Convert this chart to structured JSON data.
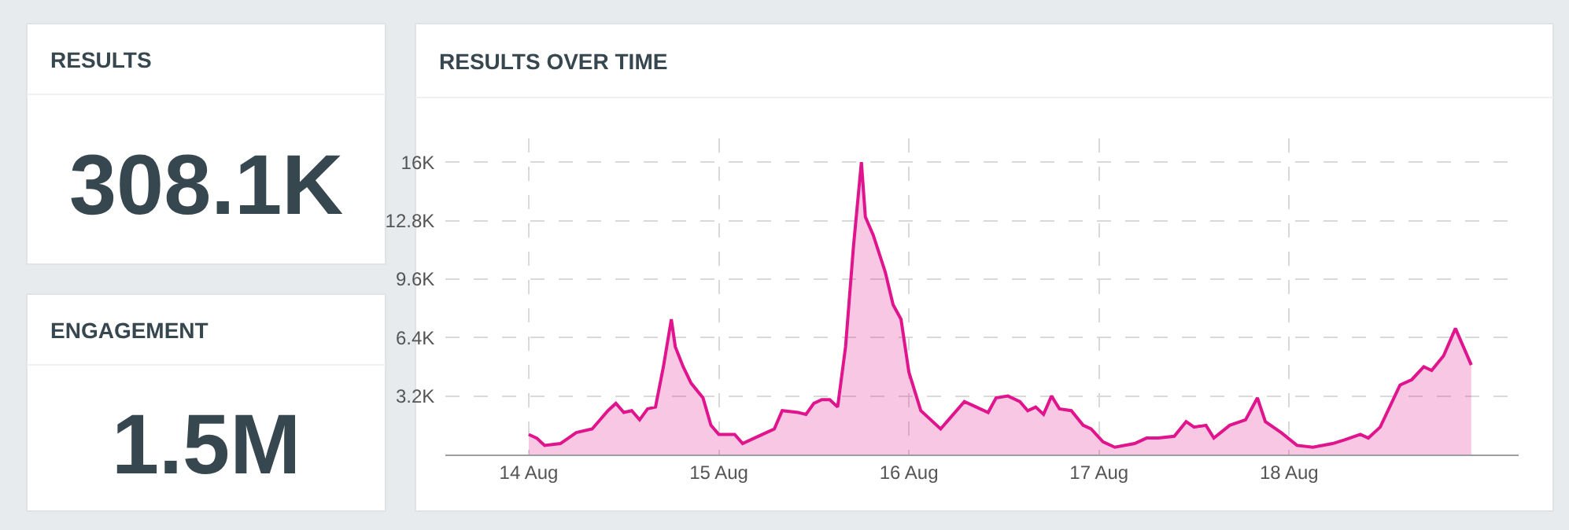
{
  "chart_data": [
    {
      "type": "other",
      "title": "RESULTS",
      "annotations": [
        "308.1K"
      ]
    },
    {
      "type": "other",
      "title": "ENGAGEMENT",
      "annotations": [
        "1.5M"
      ]
    },
    {
      "type": "area",
      "title": "RESULTS OVER TIME",
      "grid": true,
      "marker": "none",
      "line_style": "solid",
      "xlim": [
        "--08-13T13:30",
        "--08-19T05:00"
      ],
      "xticks": [
        {
          "value": "--08-14",
          "label": "14 Aug"
        },
        {
          "value": "--08-15",
          "label": "15 Aug"
        },
        {
          "value": "--08-16",
          "label": "16 Aug"
        },
        {
          "value": "--08-17",
          "label": "17 Aug"
        },
        {
          "value": "--08-18",
          "label": "18 Aug"
        }
      ],
      "ylim": [
        0,
        17300
      ],
      "yticks": [
        {
          "value": 3200,
          "label": "3.2K"
        },
        {
          "value": 6400,
          "label": "6.4K"
        },
        {
          "value": 9600,
          "label": "9.6K"
        },
        {
          "value": 12800,
          "label": "12.8K"
        },
        {
          "value": 16000,
          "label": "16K"
        }
      ],
      "series": [
        {
          "color": "#e0148c",
          "x": [
            "--08-14T00:00",
            "--08-14T01:00",
            "--08-14T02:00",
            "--08-14T04:00",
            "--08-14T06:00",
            "--08-14T08:00",
            "--08-14T10:00",
            "--08-14T11:00",
            "--08-14T12:00",
            "--08-14T13:00",
            "--08-14T14:00",
            "--08-14T15:00",
            "--08-14T16:00",
            "--08-14T17:00",
            "--08-14T18:00",
            "--08-14T18:30",
            "--08-14T19:30",
            "--08-14T20:30",
            "--08-14T22:00",
            "--08-14T23:00",
            "--08-15T00:00",
            "--08-15T02:00",
            "--08-15T03:00",
            "--08-15T04:00",
            "--08-15T06:00",
            "--08-15T07:00",
            "--08-15T08:00",
            "--08-15T10:00",
            "--08-15T11:00",
            "--08-15T12:00",
            "--08-15T13:00",
            "--08-15T14:00",
            "--08-15T15:00",
            "--08-15T16:00",
            "--08-15T17:00",
            "--08-15T18:00",
            "--08-15T18:30",
            "--08-15T19:30",
            "--08-15T21:00",
            "--08-15T22:00",
            "--08-15T23:00",
            "--08-16T00:00",
            "--08-16T01:30",
            "--08-16T04:00",
            "--08-16T05:00",
            "--08-16T07:00",
            "--08-16T08:30",
            "--08-16T10:00",
            "--08-16T11:00",
            "--08-16T12:30",
            "--08-16T14:00",
            "--08-16T15:00",
            "--08-16T16:00",
            "--08-16T17:00",
            "--08-16T18:00",
            "--08-16T19:00",
            "--08-16T20:30",
            "--08-16T22:00",
            "--08-16T23:00",
            "--08-17T00:30",
            "--08-17T02:00",
            "--08-17T04:30",
            "--08-17T06:00",
            "--08-17T07:30",
            "--08-17T09:30",
            "--08-17T11:00",
            "--08-17T12:00",
            "--08-17T13:30",
            "--08-17T14:30",
            "--08-17T16:30",
            "--08-17T18:30",
            "--08-17T20:00",
            "--08-17T21:00",
            "--08-17T23:00",
            "--08-18T01:00",
            "--08-18T03:00",
            "--08-18T05:30",
            "--08-18T07:00",
            "--08-18T09:00",
            "--08-18T10:00",
            "--08-18T11:30",
            "--08-18T14:00",
            "--08-18T15:30",
            "--08-18T17:00",
            "--08-18T18:00",
            "--08-18T19:30",
            "--08-18T21:00",
            "--08-18T22:00",
            "--08-18T23:00"
          ],
          "values": [
            1100,
            900,
            500,
            600,
            1200,
            1400,
            2400,
            2800,
            2300,
            2400,
            1900,
            2500,
            2600,
            4800,
            7400,
            5900,
            4800,
            3900,
            3100,
            1600,
            1100,
            1100,
            600,
            800,
            1200,
            1400,
            2400,
            2300,
            2200,
            2800,
            3000,
            3000,
            2600,
            5900,
            11400,
            16000,
            13000,
            12000,
            10000,
            8200,
            7400,
            4500,
            2400,
            1400,
            1900,
            2900,
            2600,
            2300,
            3100,
            3200,
            2900,
            2400,
            2600,
            2200,
            3200,
            2500,
            2400,
            1600,
            1400,
            700,
            400,
            600,
            900,
            900,
            1000,
            1800,
            1500,
            1600,
            900,
            1600,
            1900,
            3100,
            1800,
            1200,
            500,
            400,
            600,
            800,
            1100,
            900,
            1500,
            3800,
            4100,
            4800,
            4600,
            5400,
            6900,
            5900,
            4900
          ]
        }
      ]
    }
  ]
}
